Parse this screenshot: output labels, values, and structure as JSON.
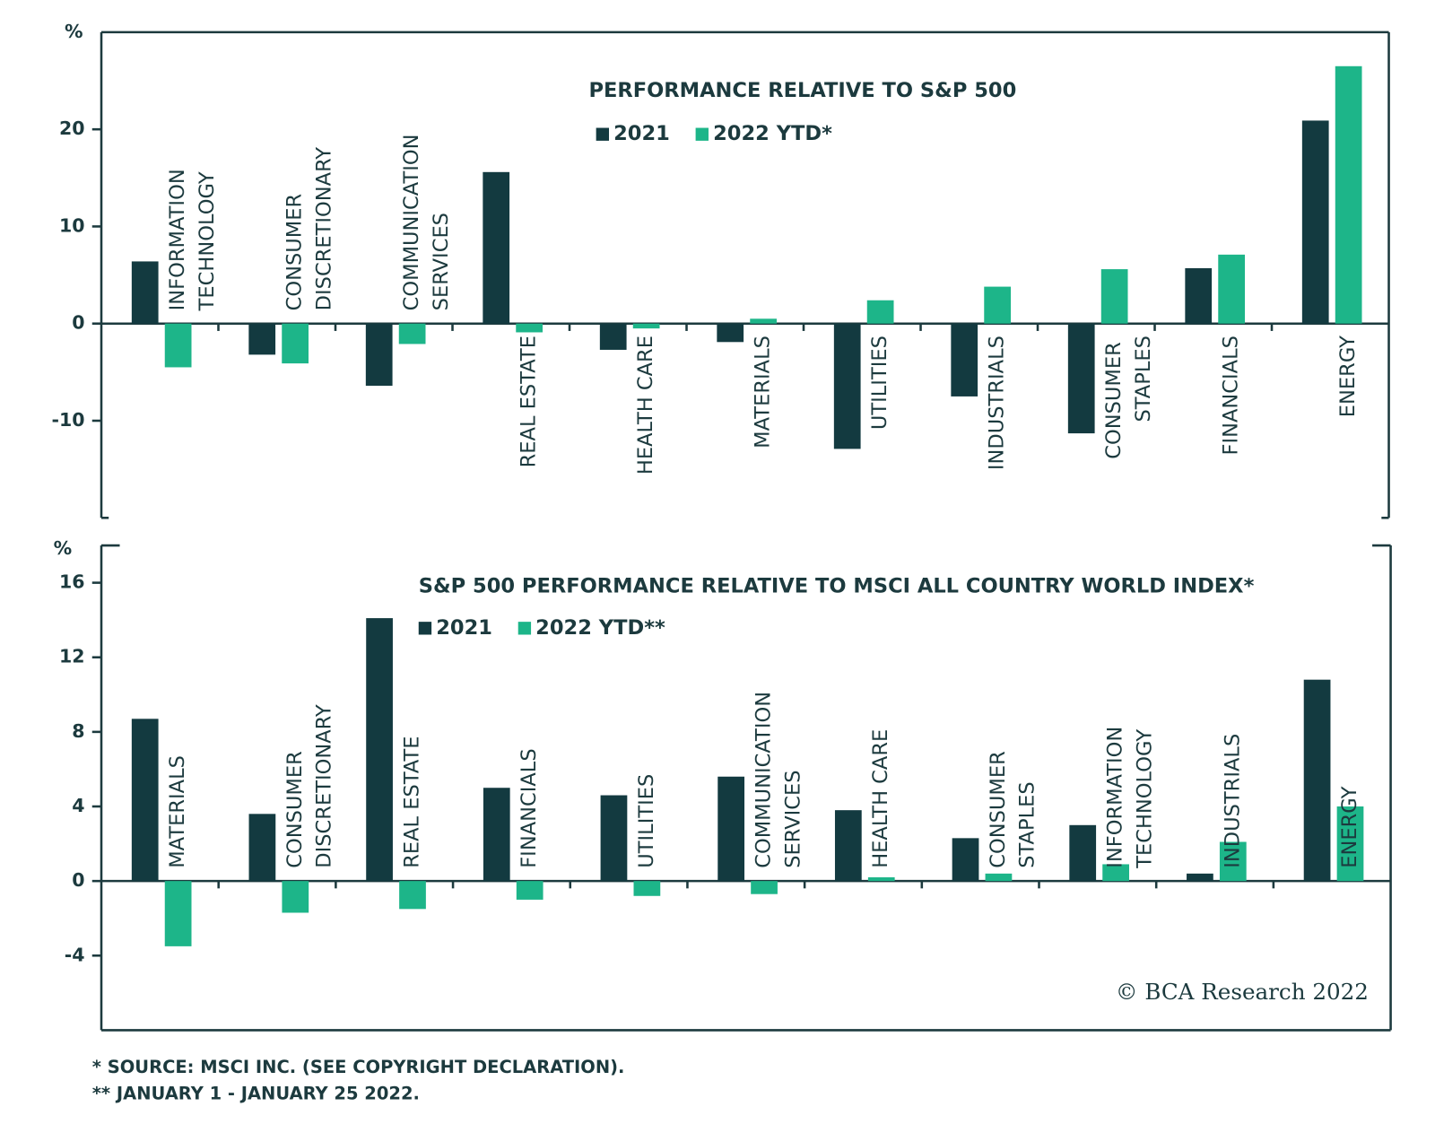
{
  "chart_data": [
    {
      "type": "bar",
      "title": "PERFORMANCE RELATIVE TO S&P 500",
      "y_label": "%",
      "categories": [
        "INFORMATION TECHNOLOGY",
        "CONSUMER DISCRETIONARY",
        "COMMUNICATION SERVICES",
        "REAL ESTATE",
        "HEALTH CARE",
        "MATERIALS",
        "UTILITIES",
        "INDUSTRIALS",
        "CONSUMER STAPLES",
        "FINANCIALS",
        "ENERGY"
      ],
      "series": [
        {
          "name": "2021",
          "color": "#133a40",
          "values": [
            6.4,
            -3.2,
            -6.4,
            15.6,
            -2.7,
            -1.9,
            -12.9,
            -7.5,
            -11.3,
            5.7,
            20.9
          ]
        },
        {
          "name": "2022 YTD*",
          "color": "#1db589",
          "values": [
            -4.5,
            -4.1,
            -2.1,
            -0.9,
            -0.5,
            0.5,
            2.4,
            3.8,
            5.6,
            7.1,
            26.5
          ]
        }
      ],
      "ylim": [
        -20,
        30
      ],
      "yticks": [
        -10,
        0,
        10,
        20
      ]
    },
    {
      "type": "bar",
      "title": "S&P 500 PERFORMANCE RELATIVE TO MSCI ALL COUNTRY WORLD INDEX*",
      "y_label": "%",
      "categories": [
        "MATERIALS",
        "CONSUMER DISCRETIONARY",
        "REAL ESTATE",
        "FINANCIALS",
        "UTILITIES",
        "COMMUNICATION SERVICES",
        "HEALTH CARE",
        "CONSUMER STAPLES",
        "INFORMATION TECHNOLOGY",
        "INDUSTRIALS",
        "ENERGY"
      ],
      "series": [
        {
          "name": "2021",
          "color": "#133a40",
          "values": [
            8.7,
            3.6,
            14.1,
            5.0,
            4.6,
            5.6,
            3.8,
            2.3,
            3.0,
            0.4,
            10.8
          ]
        },
        {
          "name": "2022 YTD**",
          "color": "#1db589",
          "values": [
            -3.5,
            -1.7,
            -1.5,
            -1.0,
            -0.8,
            -0.7,
            0.2,
            0.4,
            0.9,
            2.1,
            4.0
          ]
        }
      ],
      "ylim": [
        -8,
        18
      ],
      "yticks": [
        -4,
        0,
        4,
        8,
        12,
        16
      ]
    }
  ],
  "watermark": "© BCA Research 2022",
  "footnotes": [
    "* SOURCE: MSCI INC. (SEE COPYRIGHT DECLARATION).",
    "** JANUARY 1 - JANUARY 25 2022."
  ]
}
